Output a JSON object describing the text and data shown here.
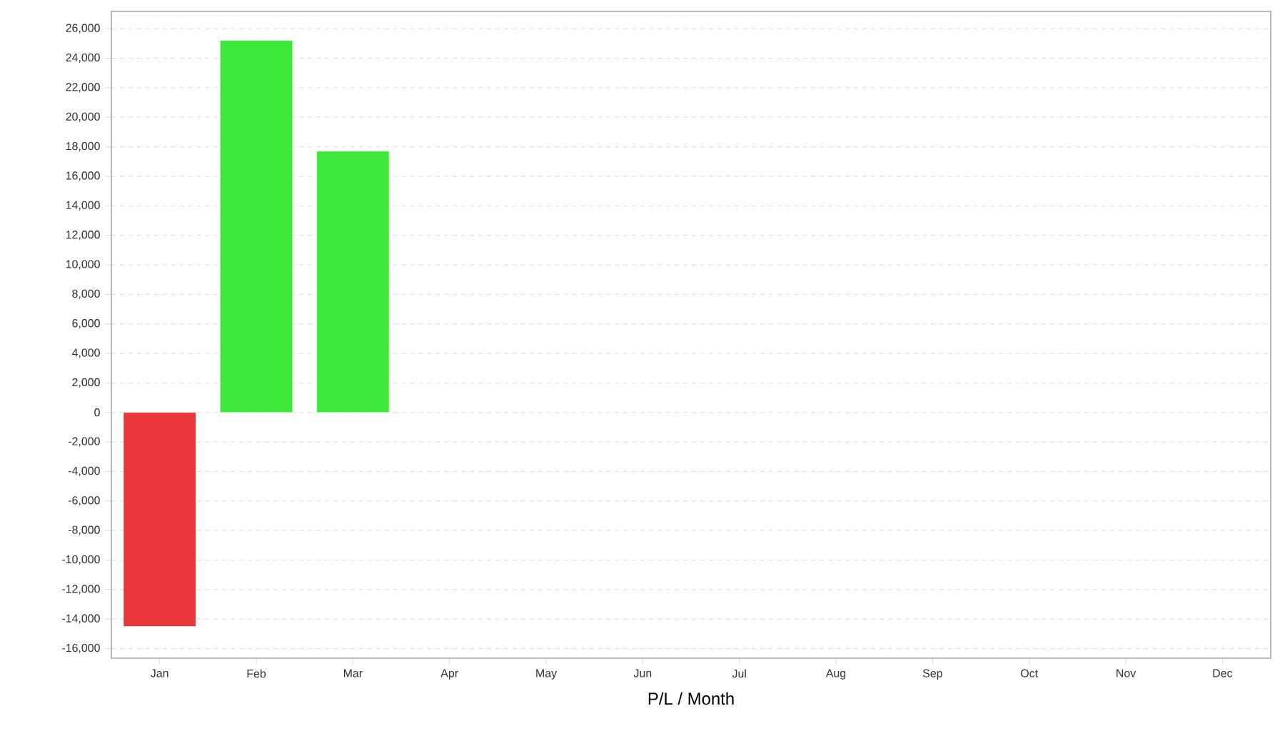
{
  "chart_data": {
    "type": "bar",
    "xlabel": "P/L / Month",
    "categories": [
      "Jan",
      "Feb",
      "Mar",
      "Apr",
      "May",
      "Jun",
      "Jul",
      "Aug",
      "Sep",
      "Oct",
      "Nov",
      "Dec"
    ],
    "values": [
      -14500,
      25200,
      17700,
      null,
      null,
      null,
      null,
      null,
      null,
      null,
      null,
      null
    ],
    "colors": [
      "#e8363a",
      "#3de83a",
      "#3de83a",
      null,
      null,
      null,
      null,
      null,
      null,
      null,
      null,
      null
    ],
    "ylim": [
      -16650,
      27170
    ],
    "yticks": [
      {
        "value": -16000,
        "label": "-16,000"
      },
      {
        "value": -14000,
        "label": "-14,000"
      },
      {
        "value": -12000,
        "label": "-12,000"
      },
      {
        "value": -10000,
        "label": "-10,000"
      },
      {
        "value": -8000,
        "label": "-8,000"
      },
      {
        "value": -6000,
        "label": "-6,000"
      },
      {
        "value": -4000,
        "label": "-4,000"
      },
      {
        "value": -2000,
        "label": "-2,000"
      },
      0,
      {
        "value": 2000,
        "label": "2,000"
      },
      {
        "value": 4000,
        "label": "4,000"
      },
      {
        "value": 6000,
        "label": "6,000"
      },
      {
        "value": 8000,
        "label": "8,000"
      },
      {
        "value": 10000,
        "label": "10,000"
      },
      {
        "value": 12000,
        "label": "12,000"
      },
      {
        "value": 14000,
        "label": "14,000"
      },
      {
        "value": 16000,
        "label": "16,000"
      },
      {
        "value": 18000,
        "label": "18,000"
      },
      {
        "value": 20000,
        "label": "20,000"
      },
      {
        "value": 22000,
        "label": "22,000"
      },
      {
        "value": 24000,
        "label": "24,000"
      },
      {
        "value": 26000,
        "label": "26,000"
      }
    ],
    "grid": "y"
  }
}
